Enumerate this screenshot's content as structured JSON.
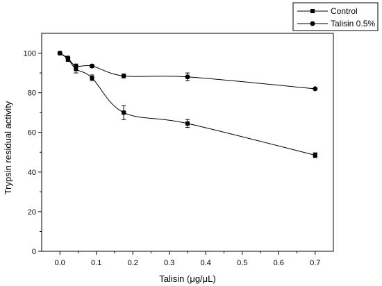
{
  "chart_data": {
    "type": "line",
    "xlabel": "Talisin (μg/μL)",
    "ylabel": "Trypsin residual activity",
    "xlim": [
      -0.05,
      0.75
    ],
    "ylim": [
      0,
      110
    ],
    "x_ticks": [
      0.0,
      0.1,
      0.2,
      0.3,
      0.4,
      0.5,
      0.6,
      0.7
    ],
    "x_tick_labels": [
      "0.0",
      "0.1",
      "0.2",
      "0.3",
      "0.4",
      "0.5",
      "0.6",
      "0.7"
    ],
    "y_ticks": [
      0,
      20,
      40,
      60,
      80,
      100
    ],
    "y_tick_labels": [
      "0",
      "20",
      "40",
      "60",
      "80",
      "100"
    ],
    "grid": false,
    "legend_position": "top-right",
    "series": [
      {
        "name": "Control",
        "marker": "square",
        "x": [
          0.0,
          0.022,
          0.044,
          0.088,
          0.175,
          0.35,
          0.7
        ],
        "y": [
          100,
          97,
          92,
          87.5,
          70,
          64.5,
          48.5
        ],
        "err": [
          0.5,
          1.2,
          2.0,
          1.5,
          3.5,
          2.0,
          1.2
        ]
      },
      {
        "name": "Talisin 0.5%",
        "marker": "circle",
        "x": [
          0.0,
          0.022,
          0.044,
          0.088,
          0.175,
          0.35,
          0.7
        ],
        "y": [
          100,
          97.5,
          93.5,
          93.5,
          88.5,
          88,
          82
        ],
        "err": [
          0.5,
          1.0,
          1.0,
          0.8,
          1.0,
          2.0,
          0.5
        ]
      }
    ]
  }
}
